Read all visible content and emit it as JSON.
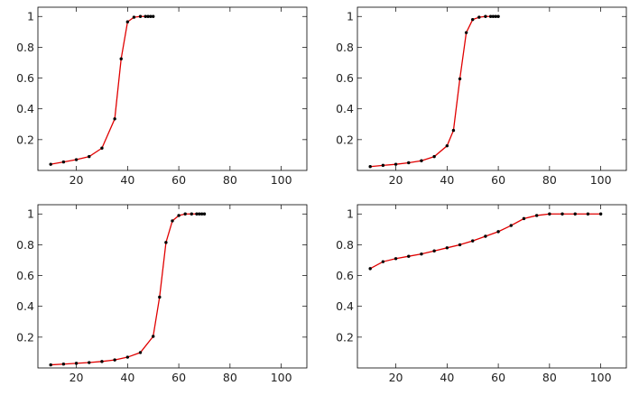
{
  "chart_data": [
    {
      "type": "line",
      "xlim": [
        5,
        110
      ],
      "ylim": [
        0.0,
        1.06
      ],
      "xticks": [
        20,
        40,
        60,
        80,
        100
      ],
      "yticks": [
        0.2,
        0.4,
        0.6,
        0.8,
        1
      ],
      "xticklabels": [
        "20",
        "40",
        "60",
        "80",
        "100"
      ],
      "yticklabels": [
        "0.2",
        "0.4",
        "0.6",
        "0.8",
        "1"
      ],
      "grid": false,
      "series": [
        {
          "x": [
            10,
            15,
            20,
            25,
            30,
            35,
            37.5,
            40,
            42.5,
            45,
            47,
            48,
            49,
            50
          ],
          "y": [
            0.04,
            0.055,
            0.07,
            0.09,
            0.145,
            0.335,
            0.725,
            0.965,
            0.995,
            1.0,
            1.0,
            1.0,
            1.0,
            1.0
          ]
        }
      ]
    },
    {
      "type": "line",
      "xlim": [
        5,
        110
      ],
      "ylim": [
        0.0,
        1.06
      ],
      "xticks": [
        20,
        40,
        60,
        80,
        100
      ],
      "yticks": [
        0.2,
        0.4,
        0.6,
        0.8,
        1
      ],
      "xticklabels": [
        "20",
        "40",
        "60",
        "80",
        "100"
      ],
      "yticklabels": [
        "0.2",
        "0.4",
        "0.6",
        "0.8",
        "1"
      ],
      "grid": false,
      "series": [
        {
          "x": [
            10,
            15,
            20,
            25,
            30,
            35,
            40,
            42.5,
            45,
            47.5,
            50,
            52.5,
            55,
            57,
            58,
            59,
            60
          ],
          "y": [
            0.025,
            0.033,
            0.04,
            0.05,
            0.063,
            0.09,
            0.16,
            0.26,
            0.595,
            0.895,
            0.98,
            0.995,
            1.0,
            1.0,
            1.0,
            1.0,
            1.0
          ]
        }
      ]
    },
    {
      "type": "line",
      "xlim": [
        5,
        110
      ],
      "ylim": [
        0.0,
        1.06
      ],
      "xticks": [
        20,
        40,
        60,
        80,
        100
      ],
      "yticks": [
        0.2,
        0.4,
        0.6,
        0.8,
        1
      ],
      "xticklabels": [
        "20",
        "40",
        "60",
        "80",
        "100"
      ],
      "yticklabels": [
        "0.2",
        "0.4",
        "0.6",
        "0.8",
        "1"
      ],
      "grid": false,
      "series": [
        {
          "x": [
            10,
            15,
            20,
            25,
            30,
            35,
            40,
            45,
            50,
            52.5,
            55,
            57.5,
            60,
            62.5,
            65,
            67,
            68,
            69,
            70
          ],
          "y": [
            0.02,
            0.025,
            0.03,
            0.035,
            0.042,
            0.052,
            0.07,
            0.1,
            0.205,
            0.46,
            0.815,
            0.955,
            0.99,
            1.0,
            1.0,
            1.0,
            1.0,
            1.0,
            1.0
          ]
        }
      ]
    },
    {
      "type": "line",
      "xlim": [
        5,
        110
      ],
      "ylim": [
        0.0,
        1.06
      ],
      "xticks": [
        20,
        40,
        60,
        80,
        100
      ],
      "yticks": [
        0.2,
        0.4,
        0.6,
        0.8,
        1
      ],
      "xticklabels": [
        "20",
        "40",
        "60",
        "80",
        "100"
      ],
      "yticklabels": [
        "0.2",
        "0.4",
        "0.6",
        "0.8",
        "1"
      ],
      "grid": false,
      "series": [
        {
          "x": [
            10,
            15,
            20,
            25,
            30,
            35,
            40,
            45,
            50,
            55,
            60,
            65,
            70,
            75,
            80,
            85,
            90,
            95,
            100
          ],
          "y": [
            0.645,
            0.69,
            0.71,
            0.725,
            0.74,
            0.76,
            0.78,
            0.8,
            0.825,
            0.855,
            0.885,
            0.925,
            0.97,
            0.99,
            1.0,
            1.0,
            1.0,
            1.0,
            1.0
          ]
        }
      ]
    }
  ]
}
